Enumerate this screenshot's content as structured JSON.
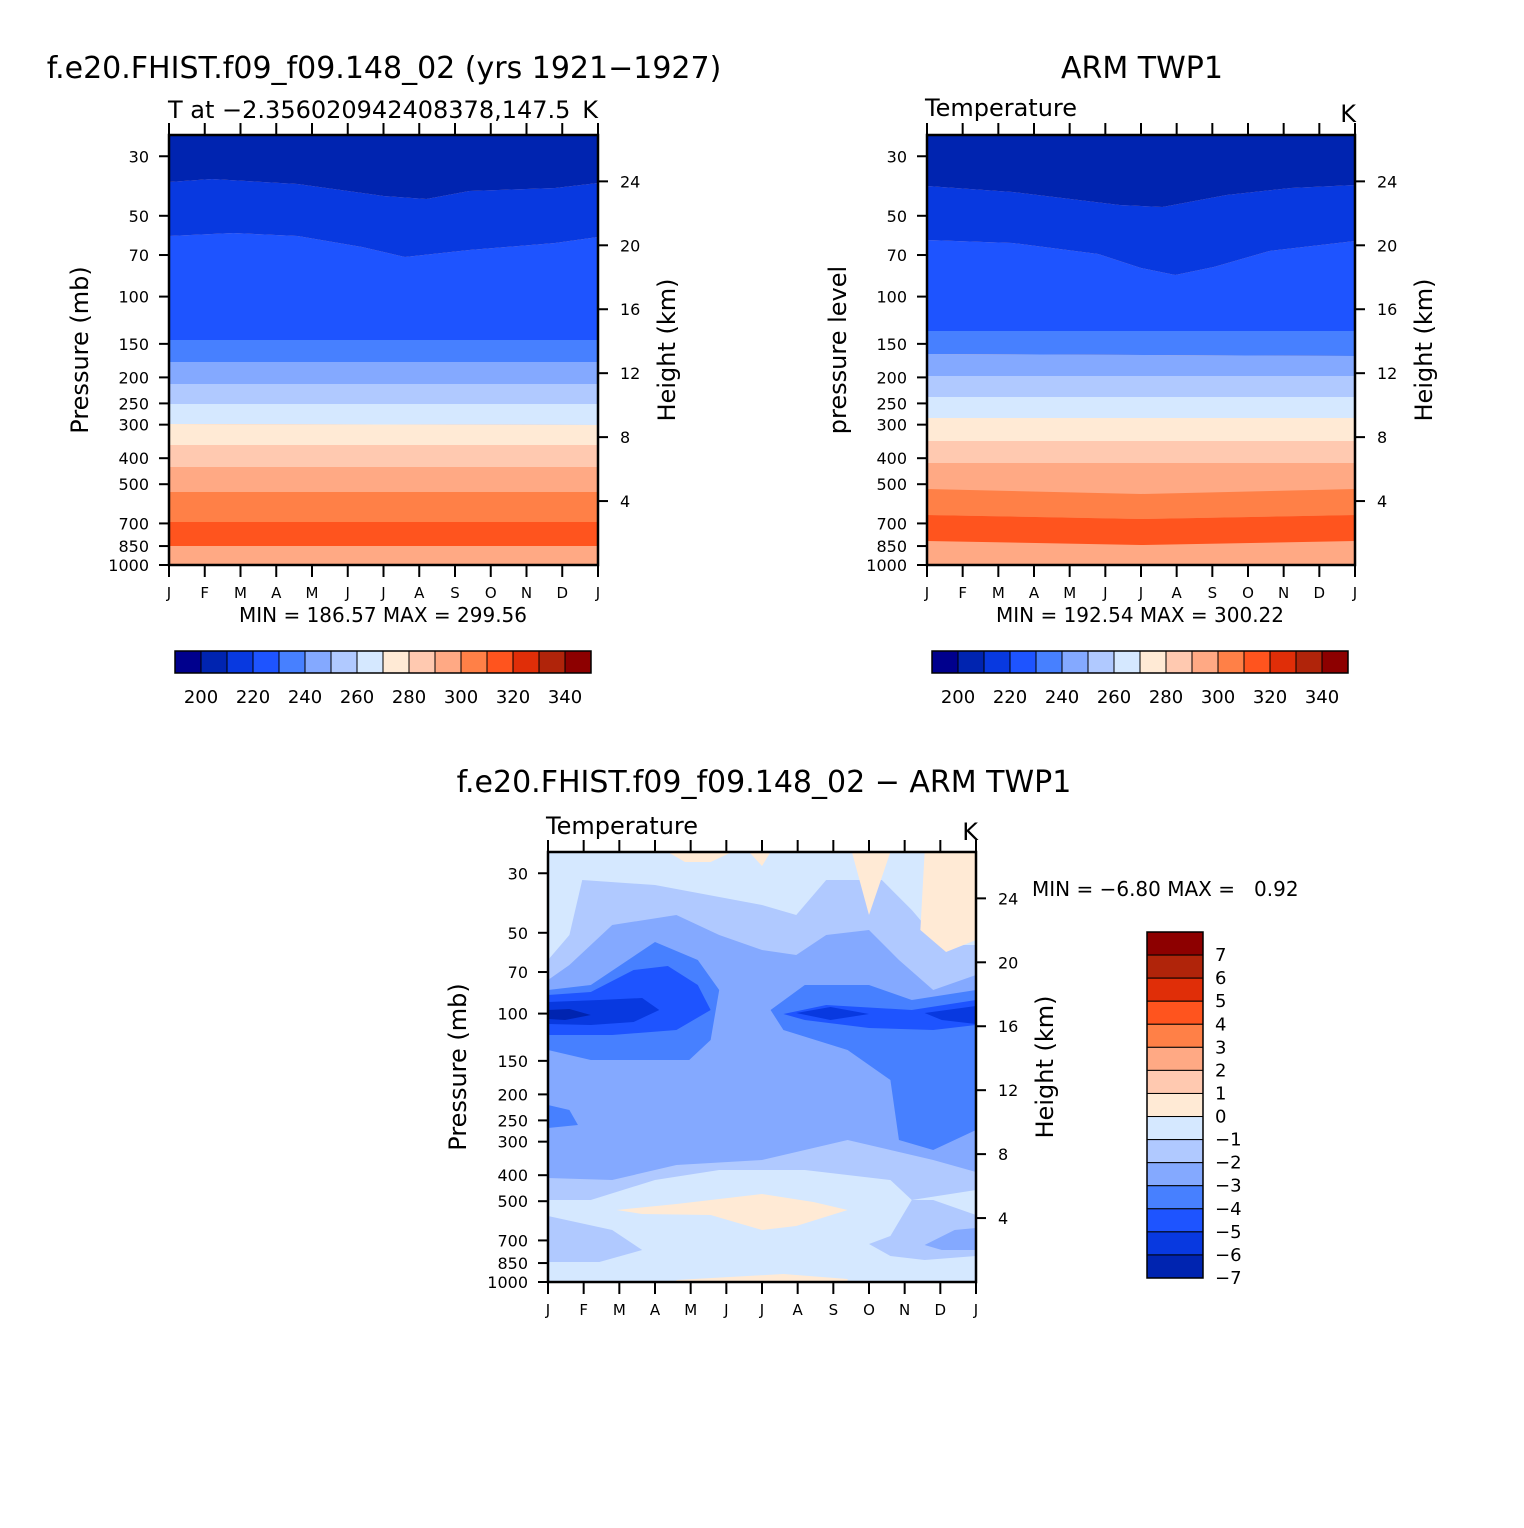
{
  "colors": {
    "abs_fill": [
      "#00008d",
      "#0024b0",
      "#0839e0",
      "#1e54ff",
      "#4780ff",
      "#84a9ff",
      "#b0c9ff",
      "#d5e8ff",
      "#ffead5",
      "#ffc9b0",
      "#ffa984",
      "#ff8047",
      "#ff541e",
      "#e02e08",
      "#b0240a",
      "#8d0000"
    ],
    "diff_fill": [
      "#00008d",
      "#0024b0",
      "#0839e0",
      "#1e54ff",
      "#4780ff",
      "#84a9ff",
      "#b0c9ff",
      "#d5e8ff",
      "#ffead5",
      "#ffc9b0",
      "#ffa984",
      "#ff8047",
      "#ff541e",
      "#e02e08",
      "#b0240a",
      "#8d0000"
    ]
  },
  "chart_data": [
    {
      "type": "heatmap",
      "title": "f.e20.FHIST.f09_f09.148_02 (yrs 1921−1927)",
      "subtitle": "T at −2.356020942408378,147.5",
      "units": "K",
      "xlabel": "",
      "ylabel": "Pressure (mb)",
      "y2label": "Height (km)",
      "x_ticks": [
        "J",
        "F",
        "M",
        "A",
        "M",
        "J",
        "J",
        "A",
        "S",
        "O",
        "N",
        "D",
        "J"
      ],
      "y_ticks": [
        "30",
        "50",
        "70",
        "100",
        "150",
        "200",
        "250",
        "300",
        "400",
        "500",
        "700",
        "850",
        "1000"
      ],
      "y2_ticks": [
        "24",
        "20",
        "16",
        "12",
        "8",
        "4"
      ],
      "y_scale": "log",
      "min_label": "MIN = 186.57 MAX = 299.56",
      "colorbar_labels": [
        "200",
        "220",
        "240",
        "260",
        "280",
        "300",
        "320",
        "340"
      ],
      "min": 186.57,
      "max": 299.56
    },
    {
      "type": "heatmap",
      "title": "ARM TWP1",
      "subtitle": "Temperature",
      "units": "K",
      "xlabel": "",
      "ylabel": "pressure level",
      "y2label": "Height (km)",
      "x_ticks": [
        "J",
        "F",
        "M",
        "A",
        "M",
        "J",
        "J",
        "A",
        "S",
        "O",
        "N",
        "D",
        "J"
      ],
      "y_ticks": [
        "30",
        "50",
        "70",
        "100",
        "150",
        "200",
        "250",
        "300",
        "400",
        "500",
        "700",
        "850",
        "1000"
      ],
      "y2_ticks": [
        "24",
        "20",
        "16",
        "12",
        "8",
        "4"
      ],
      "y_scale": "log",
      "min_label": "MIN = 192.54 MAX = 300.22",
      "colorbar_labels": [
        "200",
        "220",
        "240",
        "260",
        "280",
        "300",
        "320",
        "340"
      ],
      "min": 192.54,
      "max": 300.22
    },
    {
      "type": "heatmap",
      "title": "f.e20.FHIST.f09_f09.148_02 − ARM TWP1",
      "subtitle": "Temperature",
      "units": "K",
      "xlabel": "",
      "ylabel": "Pressure (mb)",
      "y2label": "Height (km)",
      "x_ticks": [
        "J",
        "F",
        "M",
        "A",
        "M",
        "J",
        "J",
        "A",
        "S",
        "O",
        "N",
        "D",
        "J"
      ],
      "y_ticks": [
        "30",
        "50",
        "70",
        "100",
        "150",
        "200",
        "250",
        "300",
        "400",
        "500",
        "700",
        "850",
        "1000"
      ],
      "y2_ticks": [
        "24",
        "20",
        "16",
        "12",
        "8",
        "4"
      ],
      "y_scale": "log",
      "min_label": "MIN = −6.80 MAX =   0.92",
      "colorbar_labels": [
        "7",
        "6",
        "5",
        "4",
        "3",
        "2",
        "1",
        "0",
        "−1",
        "−2",
        "−3",
        "−4",
        "−5",
        "−6",
        "−7"
      ],
      "min": -6.8,
      "max": 0.92
    }
  ]
}
